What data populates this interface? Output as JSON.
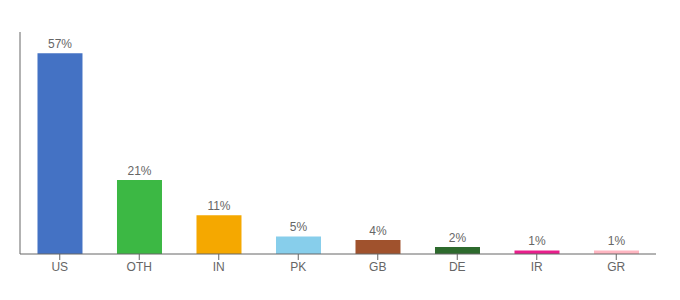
{
  "chart_data": {
    "type": "bar",
    "categories": [
      "US",
      "OTH",
      "IN",
      "PK",
      "GB",
      "DE",
      "IR",
      "GR"
    ],
    "values": [
      57,
      21,
      11,
      5,
      4,
      2,
      1,
      1
    ],
    "value_labels": [
      "57%",
      "21%",
      "11%",
      "5%",
      "4%",
      "2%",
      "1%",
      "1%"
    ],
    "colors": [
      "#4472c4",
      "#3cb844",
      "#f5a800",
      "#87ceeb",
      "#a0522d",
      "#2d6a2d",
      "#e91e8c",
      "#ffb6c1"
    ],
    "ylim": [
      0,
      63
    ],
    "data_labels": true,
    "tick_labels": "x",
    "grid": false
  }
}
